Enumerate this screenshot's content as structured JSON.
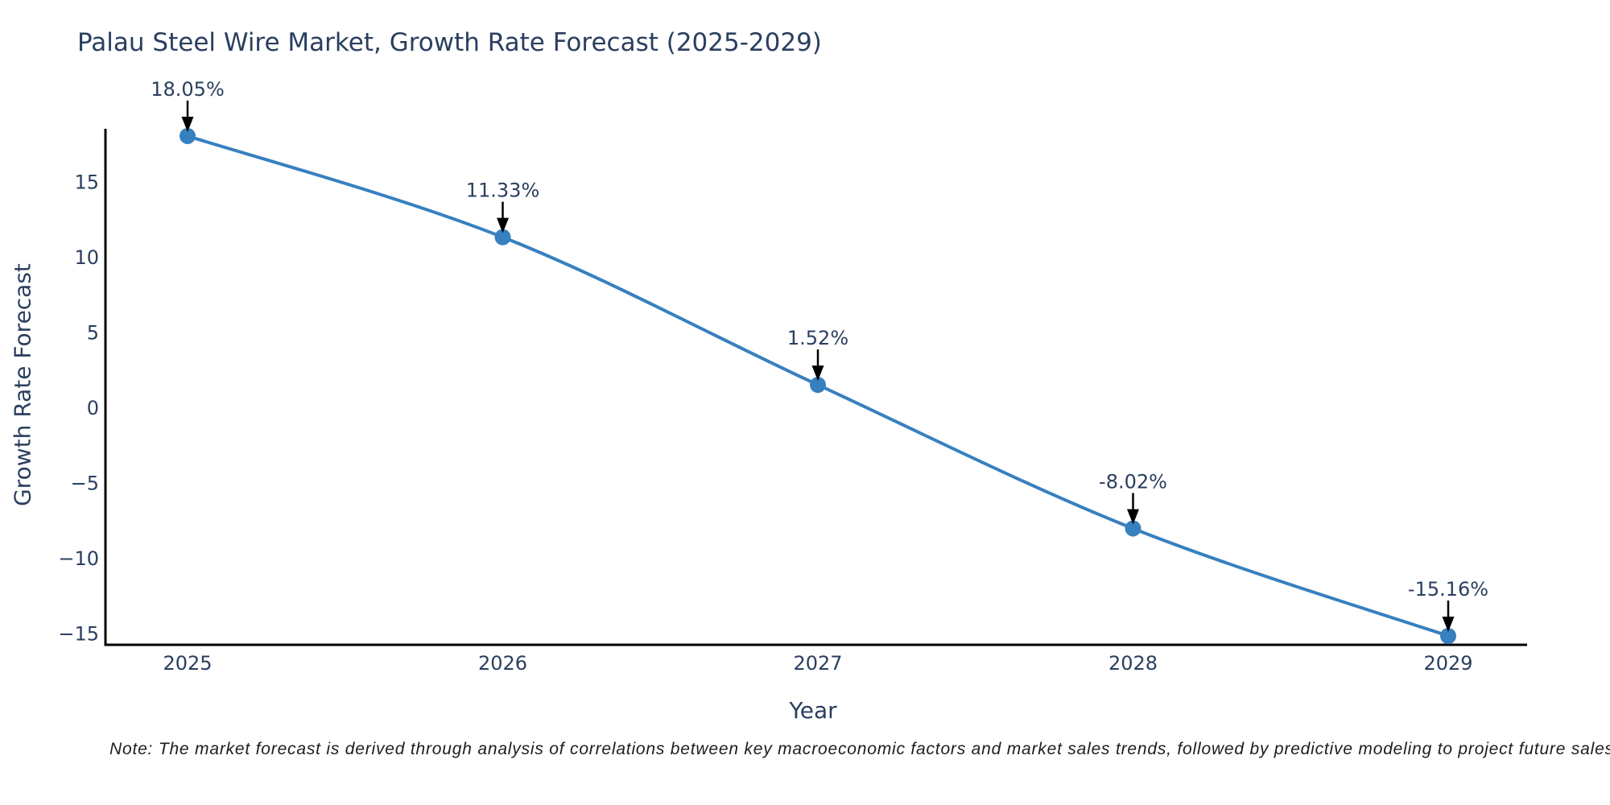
{
  "chart_data": {
    "type": "line",
    "title": "Palau Steel Wire Market, Growth Rate Forecast (2025-2029)",
    "xlabel": "Year",
    "ylabel": "Growth Rate Forecast",
    "x": [
      2025,
      2026,
      2027,
      2028,
      2029
    ],
    "series": [
      {
        "name": "Growth Rate Forecast",
        "values": [
          18.05,
          11.33,
          1.52,
          -8.02,
          -15.16
        ]
      }
    ],
    "point_labels": [
      "18.05%",
      "11.33%",
      "1.52%",
      "-8.02%",
      "-15.16%"
    ],
    "xtick_labels": [
      "2025",
      "2026",
      "2027",
      "2028",
      "2029"
    ],
    "yticks": [
      15,
      10,
      5,
      0,
      -5,
      -10,
      -15
    ],
    "ytick_labels": [
      "15",
      "10",
      "5",
      "0",
      "−5",
      "−10",
      "−15"
    ],
    "ylim": [
      -15.8,
      18.45
    ],
    "xlim": [
      2024.74,
      2029.25
    ],
    "grid": false,
    "legend": "none",
    "line_shape": "spline",
    "marker": "circle",
    "annotations": "value labels with black down arrows above each point",
    "colors": {
      "line": "#3780bf",
      "marker": "#3780bf",
      "axis": "#000000",
      "text": "#2a3f5f",
      "arrow": "#000000",
      "note": "#1d1d1d",
      "background": "#ffffff"
    },
    "note": "Note: The market forecast is derived through analysis of correlations between key macroeconomic factors and market sales trends, followed by predictive modeling to project future sales"
  }
}
